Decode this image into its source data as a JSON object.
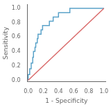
{
  "chart_data": {
    "type": "line",
    "xlabel": "1 - Specificity",
    "ylabel": "Sensitivity",
    "xlim": [
      -0.01,
      1.02
    ],
    "ylim": [
      -0.02,
      1.05
    ],
    "xticks": [
      {
        "value": 0.0,
        "label": "0.0"
      },
      0.2,
      0.4,
      0.6,
      0.8,
      {
        "value": 1.0,
        "label": "1.0"
      }
    ],
    "yticks": [
      {
        "value": 0.0,
        "label": "0.0"
      },
      0.2,
      0.4,
      0.6,
      0.8,
      {
        "value": 1.0,
        "label": "1.0"
      }
    ],
    "grid": false,
    "series": [
      {
        "color": "#d96b6b",
        "x": [
          0.0,
          1.0
        ],
        "values": [
          0.0,
          1.0
        ]
      },
      {
        "color": "#5ba3c9",
        "x": [
          0.0,
          0.0,
          0.02,
          0.02,
          0.04,
          0.04,
          0.06,
          0.06,
          0.07,
          0.07,
          0.09,
          0.09,
          0.1,
          0.1,
          0.12,
          0.12,
          0.13,
          0.13,
          0.17,
          0.17,
          0.19,
          0.19,
          0.28,
          0.28,
          0.33,
          0.33,
          0.4,
          0.4,
          0.55,
          0.55,
          1.0
        ],
        "values": [
          0.0,
          0.08,
          0.08,
          0.16,
          0.16,
          0.24,
          0.24,
          0.32,
          0.32,
          0.4,
          0.4,
          0.46,
          0.46,
          0.52,
          0.52,
          0.58,
          0.58,
          0.64,
          0.64,
          0.7,
          0.7,
          0.76,
          0.76,
          0.82,
          0.82,
          0.88,
          0.88,
          0.94,
          0.94,
          1.0,
          1.0
        ]
      }
    ]
  }
}
